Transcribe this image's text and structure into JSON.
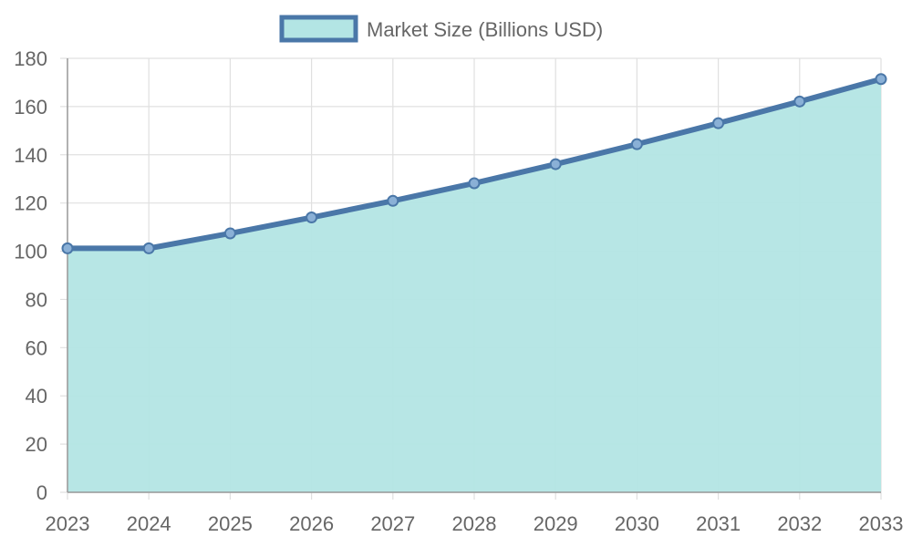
{
  "chart_data": {
    "type": "area",
    "x": [
      "2023",
      "2024",
      "2025",
      "2026",
      "2027",
      "2028",
      "2029",
      "2030",
      "2031",
      "2032",
      "2033"
    ],
    "series": [
      {
        "name": "Market Size (Billions USD)",
        "values": [
          101.2,
          101.2,
          107.4,
          114.0,
          120.9,
          128.2,
          136.1,
          144.4,
          153.1,
          162.1,
          171.4
        ]
      }
    ],
    "xlabel": "",
    "ylabel": "",
    "ylim": [
      0,
      180
    ],
    "yticks": [
      "0",
      "20",
      "40",
      "60",
      "80",
      "100",
      "120",
      "140",
      "160",
      "180"
    ],
    "grid": true,
    "legend_position": "top",
    "colors": {
      "line": "#4a77a8",
      "fill": "#b3e5e4",
      "grid": "#e0e0e0",
      "axis": "#999999",
      "text": "#666666"
    }
  }
}
